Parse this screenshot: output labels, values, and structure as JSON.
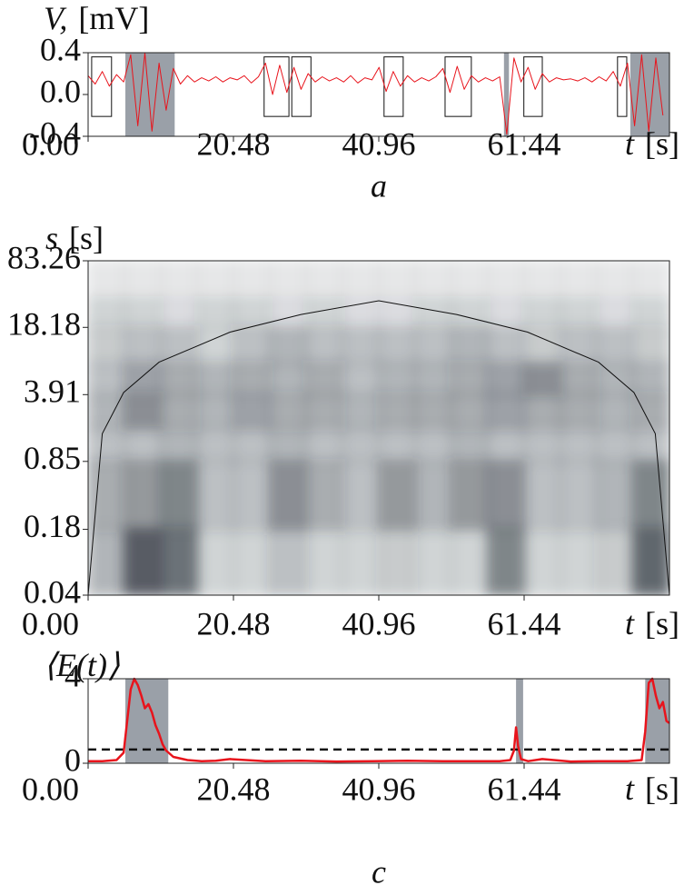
{
  "chart_data": [
    {
      "type": "line",
      "panel_label": "a",
      "ylabel": {
        "symbol": "V,",
        "unit": "[mV]"
      },
      "xlabel": {
        "symbol": "t",
        "unit": "[s]"
      },
      "x": [
        0,
        1,
        2,
        3,
        4,
        5,
        6,
        7,
        8,
        9,
        10,
        11,
        12,
        13,
        14,
        15,
        16,
        17,
        18,
        19,
        20,
        21,
        22,
        23,
        24,
        25,
        26,
        27,
        28,
        29,
        30,
        31,
        32,
        33,
        34,
        35,
        36,
        37,
        38,
        39,
        40,
        41,
        42,
        43,
        44,
        45,
        46,
        47,
        48,
        49,
        50,
        51,
        52,
        53,
        54,
        55,
        56,
        57,
        58,
        59,
        60,
        61,
        62,
        63,
        64,
        65,
        66,
        67,
        68,
        69,
        70,
        71,
        72,
        73,
        74,
        75,
        76,
        77,
        78,
        79,
        80,
        81
      ],
      "series": [
        {
          "color": "#e8141c",
          "values": [
            0.18,
            0.1,
            0.22,
            0.08,
            0.19,
            0.12,
            0.38,
            -0.3,
            0.4,
            -0.35,
            0.3,
            -0.15,
            0.25,
            0.1,
            0.18,
            0.12,
            0.16,
            0.13,
            0.17,
            0.12,
            0.16,
            0.14,
            0.18,
            0.11,
            0.17,
            0.3,
            0.0,
            0.28,
            0.02,
            0.26,
            0.05,
            0.2,
            0.12,
            0.17,
            0.13,
            0.16,
            0.12,
            0.18,
            0.11,
            0.16,
            0.14,
            0.26,
            0.03,
            0.22,
            0.08,
            0.18,
            0.12,
            0.16,
            0.13,
            0.17,
            0.25,
            0.02,
            0.27,
            0.05,
            0.18,
            0.12,
            0.16,
            0.13,
            0.17,
            -0.38,
            0.35,
            0.12,
            0.26,
            0.05,
            0.2,
            0.12,
            0.16,
            0.14,
            0.15,
            0.13,
            0.16,
            0.12,
            0.17,
            0.13,
            0.22,
            0.08,
            0.3,
            -0.3,
            0.38,
            -0.35,
            0.35,
            -0.2
          ]
        }
      ],
      "xlim": [
        0,
        81.92
      ],
      "ylim": [
        -0.4,
        0.4
      ],
      "xticks": [
        {
          "value": 0,
          "label": "0.00"
        },
        20.48,
        40.96,
        61.44
      ],
      "yticks": [
        0.4,
        {
          "value": 0,
          "label": "0.0"
        },
        -0.4
      ],
      "shaded_spans": [
        [
          5.25,
          12.2
        ],
        [
          58.6,
          59.3
        ],
        [
          76.4,
          81.92
        ]
      ],
      "shade_color": "#9aa0a8",
      "boxes": [
        {
          "x": [
            0.5,
            3.3
          ],
          "y": [
            -0.21,
            0.36
          ]
        },
        {
          "x": [
            24.8,
            28.3
          ],
          "y": [
            -0.21,
            0.36
          ]
        },
        {
          "x": [
            28.7,
            31.4
          ],
          "y": [
            -0.21,
            0.36
          ]
        },
        {
          "x": [
            41.7,
            44.4
          ],
          "y": [
            -0.21,
            0.36
          ]
        },
        {
          "x": [
            50.3,
            54.0
          ],
          "y": [
            -0.21,
            0.36
          ]
        },
        {
          "x": [
            61.4,
            64.0
          ],
          "y": [
            -0.21,
            0.36
          ]
        },
        {
          "x": [
            74.6,
            75.9
          ],
          "y": [
            -0.21,
            0.36
          ]
        }
      ]
    },
    {
      "type": "heatmap",
      "ylabel": {
        "symbol": "s",
        "unit": "[s]"
      },
      "xlabel": {
        "symbol": "t",
        "unit": "[s]"
      },
      "xlim": [
        0,
        81.92
      ],
      "ylim": [
        0.04,
        83.26
      ],
      "ylog": true,
      "xticks": [
        {
          "value": 0,
          "label": "0.00"
        },
        20.48,
        40.96,
        61.44
      ],
      "yticks": [
        83.26,
        18.18,
        3.91,
        0.85,
        0.18,
        0.04
      ],
      "t_edges": [
        0,
        5.12,
        10.24,
        15.36,
        20.48,
        25.6,
        30.72,
        35.84,
        40.96,
        46.08,
        51.2,
        56.32,
        61.44,
        66.56,
        71.68,
        76.8,
        81.92
      ],
      "s_edges": [
        83.26,
        35,
        18.18,
        8,
        3.91,
        1.8,
        0.85,
        0.18,
        0.04
      ],
      "intensity": [
        [
          0.1,
          0.1,
          0.1,
          0.1,
          0.1,
          0.1,
          0.1,
          0.1,
          0.1,
          0.1,
          0.1,
          0.1,
          0.1,
          0.1,
          0.1,
          0.1
        ],
        [
          0.2,
          0.2,
          0.15,
          0.2,
          0.2,
          0.15,
          0.2,
          0.15,
          0.15,
          0.2,
          0.2,
          0.15,
          0.2,
          0.2,
          0.15,
          0.2
        ],
        [
          0.25,
          0.3,
          0.3,
          0.2,
          0.3,
          0.35,
          0.3,
          0.3,
          0.3,
          0.3,
          0.35,
          0.3,
          0.25,
          0.3,
          0.3,
          0.25
        ],
        [
          0.3,
          0.45,
          0.4,
          0.35,
          0.4,
          0.35,
          0.4,
          0.3,
          0.35,
          0.35,
          0.4,
          0.45,
          0.55,
          0.4,
          0.35,
          0.35
        ],
        [
          0.35,
          0.55,
          0.4,
          0.35,
          0.45,
          0.4,
          0.4,
          0.35,
          0.4,
          0.4,
          0.4,
          0.45,
          0.4,
          0.4,
          0.35,
          0.4
        ],
        [
          0.3,
          0.3,
          0.35,
          0.3,
          0.3,
          0.35,
          0.3,
          0.3,
          0.3,
          0.3,
          0.35,
          0.3,
          0.3,
          0.3,
          0.3,
          0.3
        ],
        [
          0.4,
          0.5,
          0.6,
          0.3,
          0.3,
          0.55,
          0.4,
          0.3,
          0.5,
          0.35,
          0.5,
          0.55,
          0.3,
          0.3,
          0.35,
          0.6
        ],
        [
          0.35,
          0.8,
          0.7,
          0.2,
          0.2,
          0.3,
          0.2,
          0.2,
          0.25,
          0.2,
          0.2,
          0.6,
          0.2,
          0.2,
          0.25,
          0.75
        ]
      ],
      "cone": {
        "x": [
          0,
          2,
          5,
          10,
          20,
          30,
          40.96,
          51.92,
          61.92,
          71.92,
          76.92,
          79.92,
          81.92
        ],
        "values": [
          0.04,
          1.6,
          4.1,
          8.2,
          16.3,
          24.4,
          33.4,
          24.4,
          16.3,
          8.2,
          4.1,
          1.6,
          0.04
        ]
      }
    },
    {
      "type": "line",
      "panel_label": "c",
      "ylabel": {
        "symbol": "⟨E(t)⟩"
      },
      "xlabel": {
        "symbol": "t",
        "unit": "[s]"
      },
      "x": [
        0,
        2,
        4,
        5,
        5.5,
        6,
        6.5,
        7,
        7.5,
        8,
        8.5,
        9,
        9.5,
        10,
        10.5,
        11,
        12,
        14,
        16,
        18,
        20,
        25,
        30,
        35,
        40,
        45,
        50,
        55,
        58,
        59.5,
        60,
        60.3,
        60.6,
        61,
        62,
        64,
        68,
        72,
        76,
        78,
        78.5,
        79,
        79.5,
        80,
        80.5,
        81,
        81.5,
        81.9
      ],
      "series": [
        {
          "color": "#e8141c",
          "values": [
            0.1,
            0.1,
            0.15,
            0.5,
            2.0,
            3.5,
            4.0,
            3.7,
            3.2,
            2.6,
            2.8,
            2.4,
            1.8,
            1.4,
            0.9,
            0.6,
            0.3,
            0.15,
            0.1,
            0.12,
            0.2,
            0.1,
            0.12,
            0.08,
            0.1,
            0.12,
            0.1,
            0.1,
            0.1,
            0.15,
            0.6,
            1.7,
            0.8,
            0.2,
            0.1,
            0.2,
            0.08,
            0.1,
            0.1,
            0.15,
            1.5,
            3.8,
            4.0,
            3.2,
            2.6,
            2.9,
            2.0,
            1.9
          ]
        }
      ],
      "xlim": [
        0,
        81.92
      ],
      "ylim": [
        0,
        4
      ],
      "xticks": [
        {
          "value": 0,
          "label": "0.00"
        },
        20.48,
        40.96,
        61.44
      ],
      "yticks": [
        4,
        0
      ],
      "threshold": 0.65,
      "shaded_spans": [
        [
          5.25,
          11.3
        ],
        [
          60.3,
          61.3
        ],
        [
          78.5,
          81.92
        ]
      ],
      "shade_color": "#9aa0a8"
    }
  ]
}
